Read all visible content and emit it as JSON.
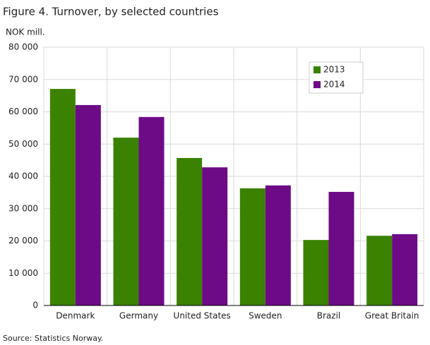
{
  "chart_data": {
    "type": "bar",
    "title": "Figure  4. Turnover, by selected countries",
    "y_label": "NOK mill.",
    "source": "Source: Statistics Norway.",
    "categories": [
      "Denmark",
      "Germany",
      "United States",
      "Sweden",
      "Brazil",
      "Great Britain"
    ],
    "series": [
      {
        "name": "2013",
        "color": "#3a8200",
        "values": [
          67100,
          52000,
          45700,
          36300,
          20300,
          21600
        ]
      },
      {
        "name": "2014",
        "color": "#6d0a86",
        "values": [
          62100,
          58400,
          42800,
          37200,
          35200,
          22100
        ]
      }
    ],
    "ylim": [
      0,
      80000
    ],
    "yticks": [
      0,
      {
        "value": 10000,
        "label": "10 000"
      },
      {
        "value": 20000,
        "label": "20 000"
      },
      {
        "value": 30000,
        "label": "30 000"
      },
      {
        "value": 40000,
        "label": "40 000"
      },
      {
        "value": 50000,
        "label": "50 000"
      },
      {
        "value": 60000,
        "label": "60 000"
      },
      {
        "value": 70000,
        "label": "70 000"
      },
      {
        "value": 80000,
        "label": "80 000"
      }
    ],
    "grid": true,
    "legend": "upper right"
  }
}
